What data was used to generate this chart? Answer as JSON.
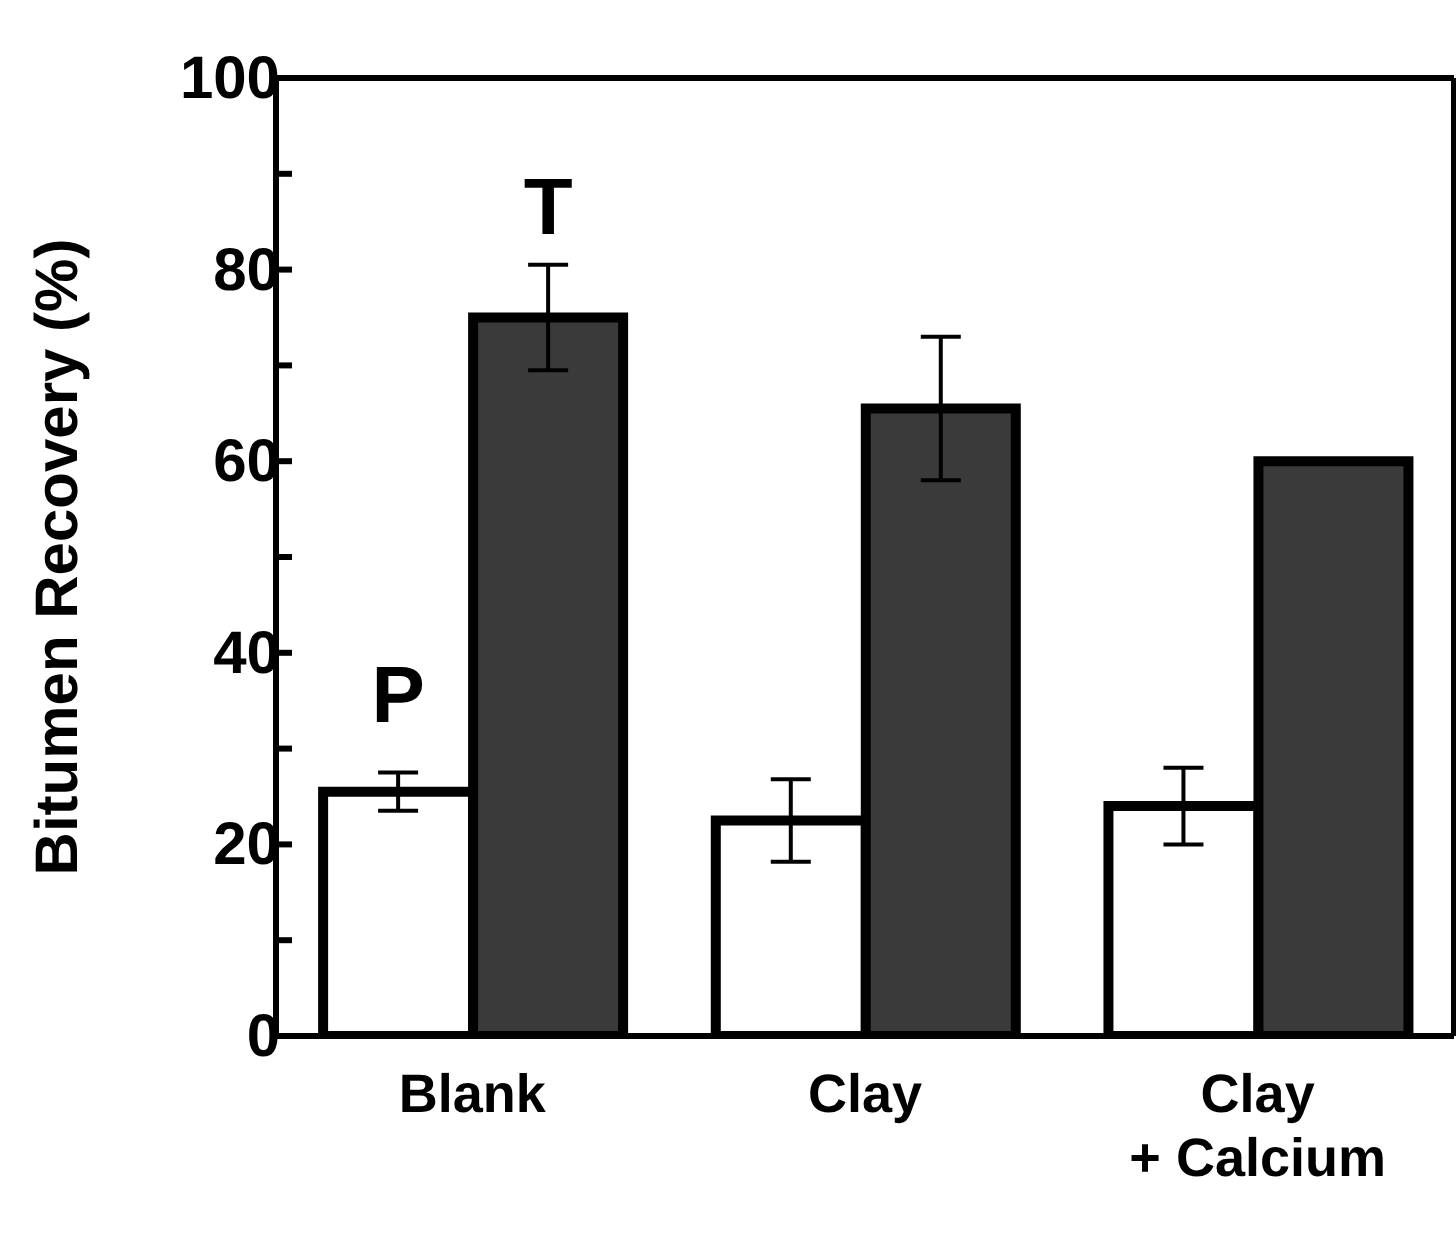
{
  "chart_data": {
    "type": "bar",
    "ylabel": "Bitumen Recovery (%)",
    "categories": [
      "Blank",
      "Clay",
      "Clay\n+ Calcium"
    ],
    "series": [
      {
        "name": "P",
        "color": "#ffffff",
        "values": [
          25.5,
          22.5,
          24
        ],
        "errors": [
          2,
          4.3,
          4
        ]
      },
      {
        "name": "T",
        "color": "#3a3a3a",
        "values": [
          75,
          65.5,
          60
        ],
        "errors": [
          5.5,
          7.5,
          null
        ]
      }
    ],
    "ylim": [
      0,
      100
    ],
    "yticks": [
      0,
      {
        "value": 10,
        "label": null
      },
      20,
      {
        "value": 30,
        "label": null
      },
      40,
      {
        "value": 50,
        "label": null
      },
      60,
      {
        "value": 70,
        "label": null
      },
      80,
      {
        "value": 90,
        "label": null
      },
      100
    ],
    "grid": false,
    "legend": false
  }
}
